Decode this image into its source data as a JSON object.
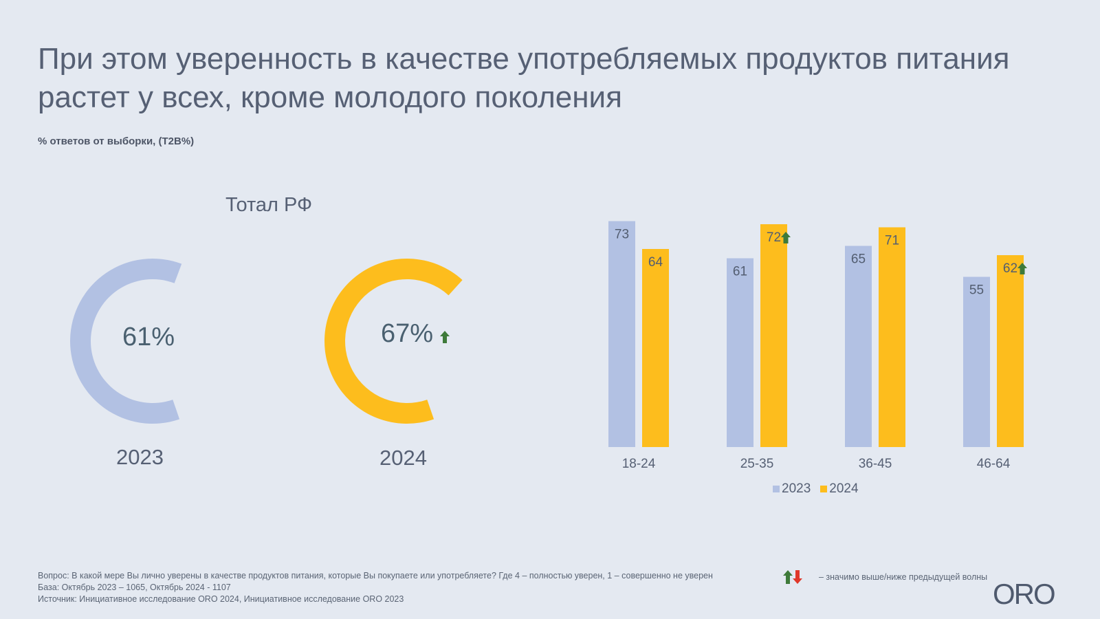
{
  "title": "При этом уверенность в качестве употребляемых продуктов питания растет у всех, кроме молодого поколения",
  "subtitle": "% ответов от выборки, (T2B%)",
  "colors": {
    "year_2023": "#b2c1e3",
    "year_2024": "#fdbd1d",
    "up_arrow": "#3e7a3a",
    "down_arrow": "#e0382a",
    "text": "#566074"
  },
  "chart_data": [
    {
      "type": "pie",
      "title": "Тотал РФ",
      "series": [
        {
          "name": "2023",
          "value": 61,
          "label": "61%",
          "significant_change": "none"
        },
        {
          "name": "2024",
          "value": 67,
          "label": "67%",
          "significant_change": "up"
        }
      ]
    },
    {
      "type": "bar",
      "title": "",
      "xlabel": "",
      "ylabel": "",
      "categories": [
        "18-24",
        "25-35",
        "36-45",
        "46-64"
      ],
      "series": [
        {
          "name": "2023",
          "values": [
            73,
            61,
            65,
            55
          ],
          "significant_change": [
            "none",
            "none",
            "none",
            "none"
          ]
        },
        {
          "name": "2024",
          "values": [
            64,
            72,
            71,
            62
          ],
          "significant_change": [
            "none",
            "up",
            "none",
            "up"
          ]
        }
      ],
      "ylim": [
        0,
        73
      ],
      "grid": false,
      "legend": "bottom-center",
      "legend_entries": [
        "2023",
        "2024"
      ]
    }
  ],
  "footer": {
    "question": "Вопрос: В какой мере Вы лично уверены в качестве продуктов питания, которые Вы покупаете или употребляете? Где 4 – полностью уверен, 1 – совершенно не уверен",
    "base": "База: Октябрь 2023 – 1065, Октябрь 2024 - 1107",
    "source": "Источник: Инициативное исследование ORO 2024, Инициативное исследование ORO 2023",
    "significance_legend": "– значимо выше/ниже предыдущей волны"
  },
  "logo": "ORO"
}
